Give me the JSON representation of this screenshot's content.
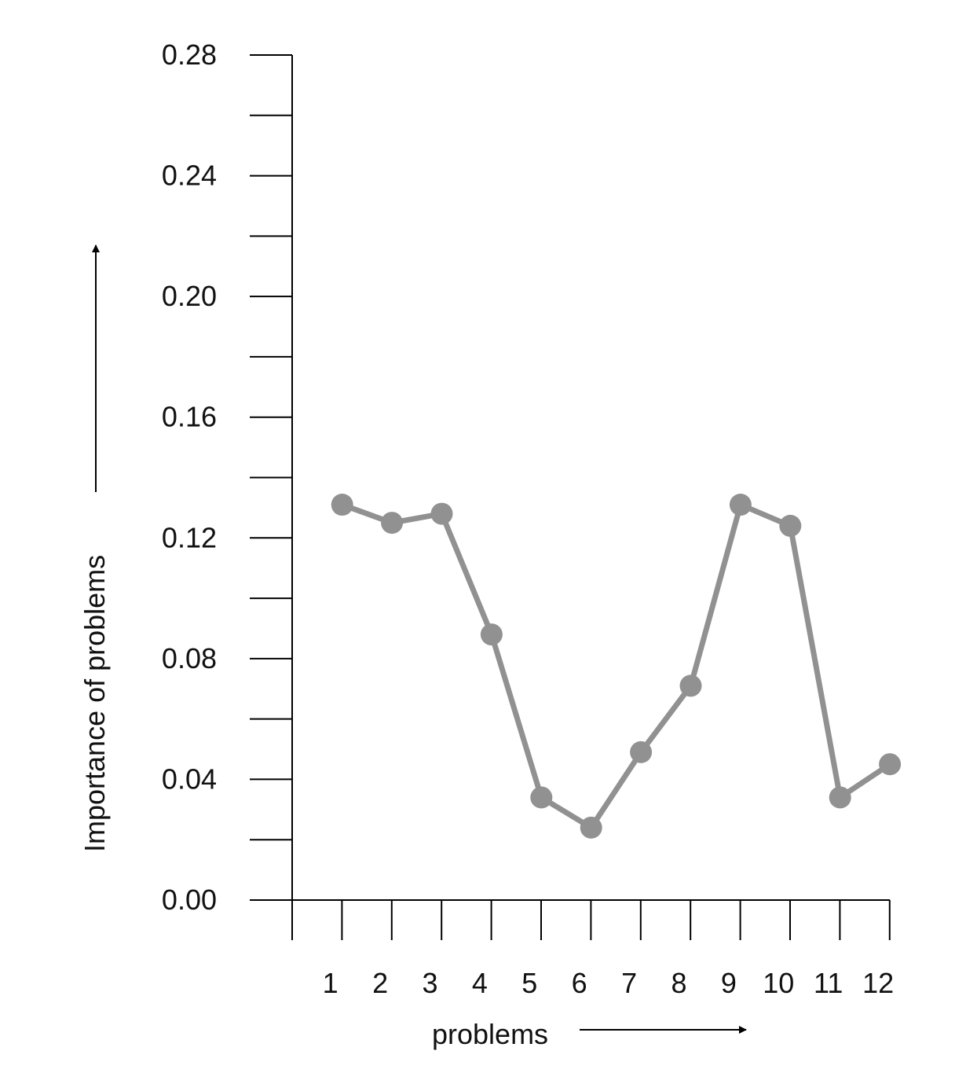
{
  "chart_data": {
    "type": "line",
    "xlabel": "problems",
    "ylabel": "Importance of problems",
    "ylim": [
      0,
      0.28
    ],
    "yticks": [
      "0.00",
      "0.04",
      "0.08",
      "0.12",
      "0.16",
      "0.20",
      "0.24",
      "0.28"
    ],
    "categories": [
      "1",
      "2",
      "3",
      "4",
      "5",
      "6",
      "7",
      "8",
      "9",
      "10",
      "11",
      "12"
    ],
    "series": [
      {
        "x": [
          1,
          2,
          3,
          4,
          5,
          6,
          7,
          8,
          9,
          10,
          11,
          12
        ],
        "values": [
          0.131,
          0.125,
          0.128,
          0.088,
          0.034,
          0.024,
          0.049,
          0.071,
          0.131,
          0.124,
          0.034,
          0.045
        ],
        "color": "#919191"
      }
    ],
    "grid": false,
    "legend": "none"
  }
}
